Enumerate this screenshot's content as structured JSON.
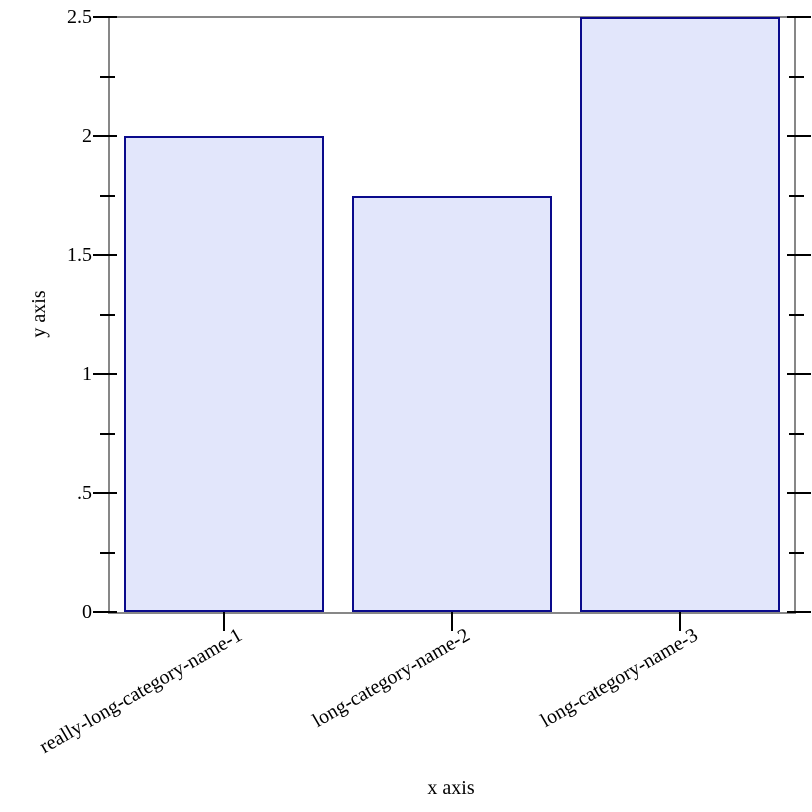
{
  "chart_data": {
    "type": "bar",
    "title": "",
    "xlabel": "x axis",
    "ylabel": "y axis",
    "categories": [
      "really-long-category-name-1",
      "long-category-name-2",
      "long-category-name-3"
    ],
    "values": [
      2,
      1.75,
      2.5
    ],
    "ylim": [
      0,
      2.5
    ],
    "y_major_ticks": [
      0,
      0.5,
      1,
      1.5,
      2,
      2.5
    ],
    "y_major_tick_labels": [
      "0",
      ".5",
      "1",
      "1.5",
      "2",
      "2.5"
    ],
    "y_minor_ticks": [
      0.25,
      0.75,
      1.25,
      1.75,
      2.25
    ],
    "grid": false,
    "legend": "none",
    "category_label_angle_deg": -30,
    "colors": {
      "bar_fill": "#e2e6fb",
      "bar_stroke": "#0a0a8c",
      "axis_frame": "#878787",
      "tick": "#000000",
      "text": "#000000",
      "background": "#ffffff"
    }
  }
}
